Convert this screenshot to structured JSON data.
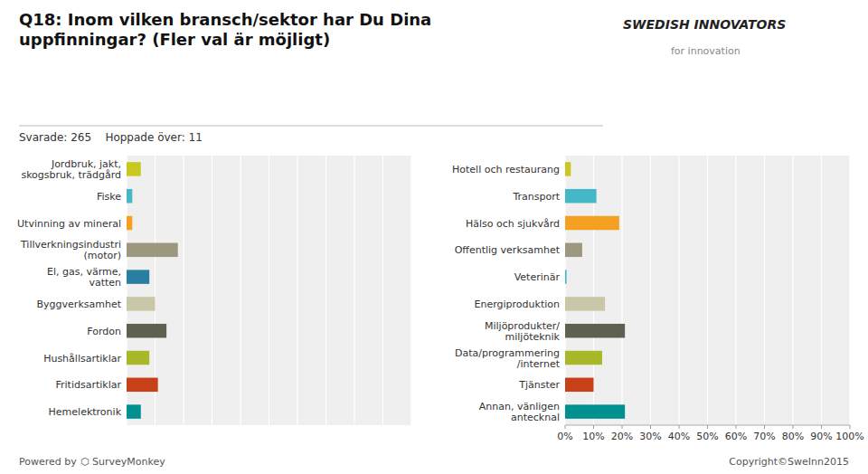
{
  "chart_data": [
    {
      "type": "bar",
      "title": "Q18: Inom vilken bransch/sektor har Du Dina\nuppfinningar? (Fler val är möjligt)",
      "subtitle": "Svarade: 265    Hoppade över: 11",
      "annotations": [
        "Powered by",
        "⬡ SurveyMonkey",
        "Copyright©SweInn2015",
        "SWEDISH INNOVATORS",
        "for innovation"
      ],
      "orientation": "horizontal",
      "categories": [
        "Jordbruk, jakt,\nskogsbruk, trädgård",
        "Fiske",
        "Utvinning av mineral",
        "Tillverkningsindustri\n(motor)",
        "El, gas, värme,\nvatten",
        "Byggverksamhet",
        "Fordon",
        "Hushållsartiklar",
        "Fritidsartiklar",
        "Hemelektronik"
      ],
      "values": [
        5,
        2,
        2,
        18,
        8,
        10,
        14,
        8,
        11,
        5
      ],
      "colors": [
        "#c8c820",
        "#45b8c8",
        "#f5a020",
        "#9c9880",
        "#2a7fa0",
        "#c8c8a8",
        "#606050",
        "#a8b828",
        "#c84018",
        "#009090"
      ],
      "xlim": [
        0,
        100
      ],
      "xticks": [
        0,
        10,
        20,
        30,
        40,
        50,
        60,
        70,
        80,
        90,
        100
      ],
      "grid": true,
      "tick_labels": "y"
    },
    {
      "type": "bar",
      "orientation": "horizontal",
      "categories": [
        "Hotell och restaurang",
        "Transport",
        "Hälso och sjukvård",
        "Offentlig verksamhet",
        "Veterinär",
        "Energiproduktion",
        "Miljöprodukter/\nmiljöteknik",
        "Data/programmering\n/internet",
        "Tjänster",
        "Annan, vänligen\nantecknal"
      ],
      "values": [
        2,
        11,
        19,
        6,
        0.5,
        14,
        21,
        13,
        10,
        21
      ],
      "colors": [
        "#c8c820",
        "#45b8c8",
        "#f5a020",
        "#9c9880",
        "#45b8c8",
        "#c8c8a8",
        "#606050",
        "#a8b828",
        "#c84018",
        "#009090"
      ],
      "xlim": [
        0,
        100
      ],
      "xticks": [
        {
          "value": 0,
          "label": "0%"
        },
        {
          "value": 10,
          "label": "10%"
        },
        {
          "value": 20,
          "label": "20%"
        },
        {
          "value": 30,
          "label": "30%"
        },
        {
          "value": 40,
          "label": "40%"
        },
        {
          "value": 50,
          "label": "50%"
        },
        {
          "value": 60,
          "label": "60%"
        },
        {
          "value": 70,
          "label": "70%"
        },
        {
          "value": 80,
          "label": "80%"
        },
        {
          "value": 90,
          "label": "90%"
        },
        {
          "value": 100,
          "label": "100%"
        }
      ],
      "grid": true,
      "tick_labels": true
    }
  ]
}
